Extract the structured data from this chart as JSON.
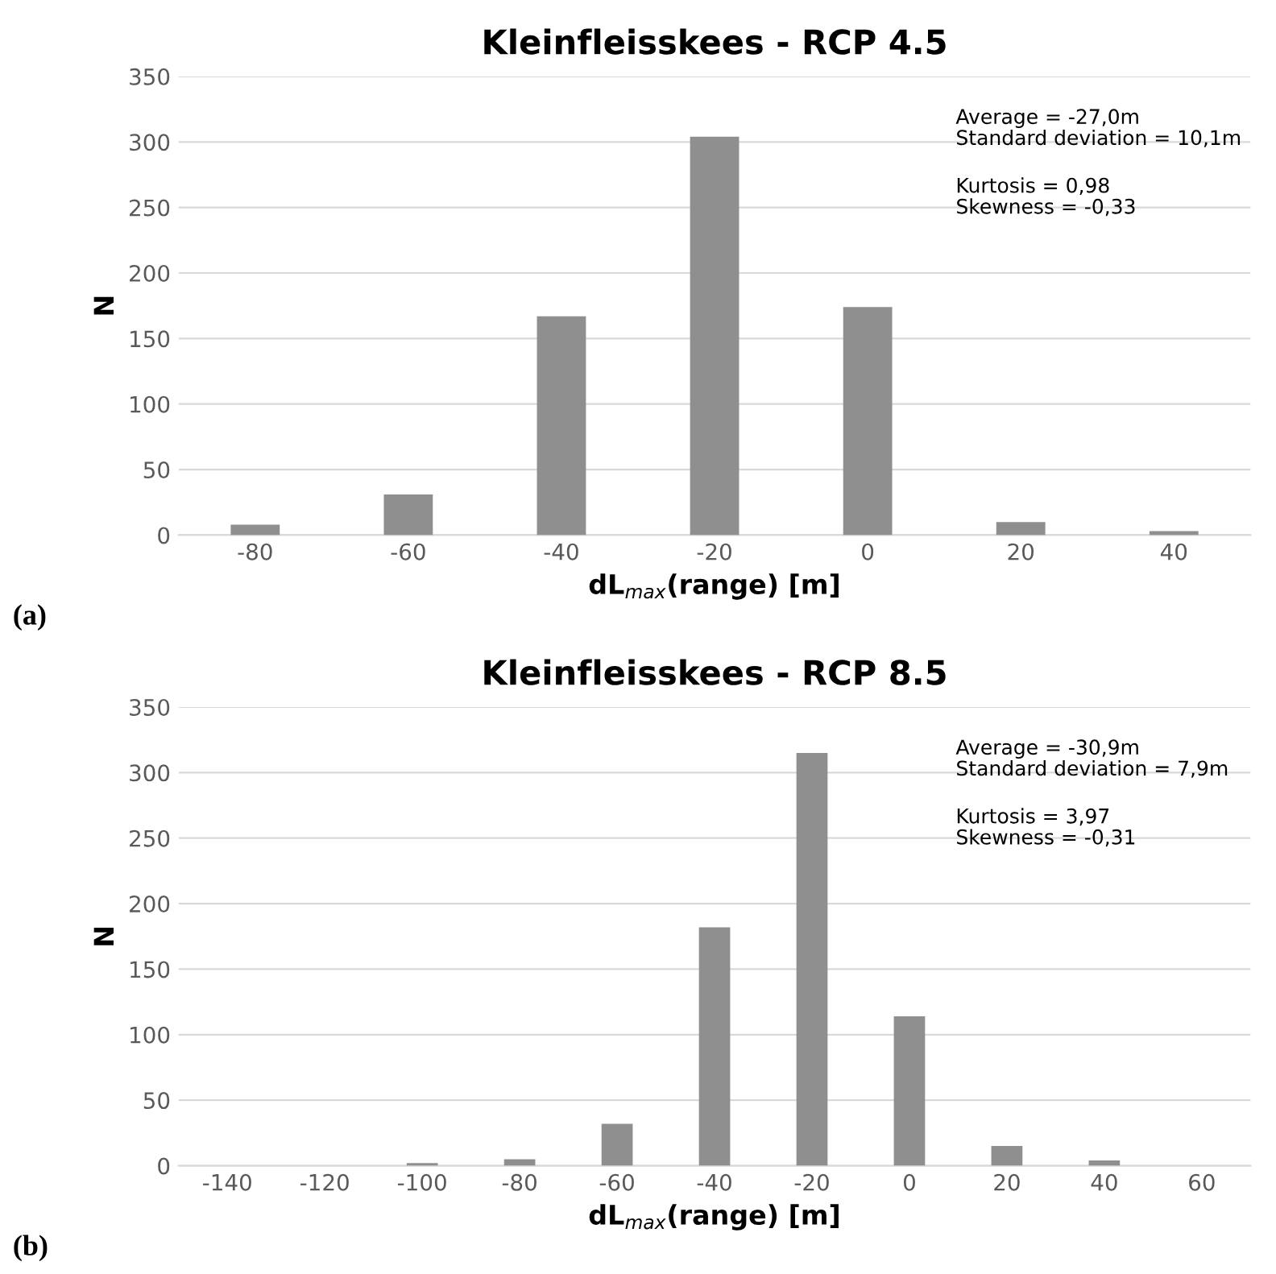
{
  "chart_data": [
    {
      "type": "bar",
      "title": "Kleinfleisskees - RCP 4.5",
      "xlabel": "dL$_{max}$(range) [m]",
      "ylabel": "N",
      "categories": [
        "-80",
        "-60",
        "-40",
        "-20",
        "0",
        "20",
        "40"
      ],
      "values": [
        8,
        31,
        167,
        304,
        174,
        10,
        3
      ],
      "color": "#8f8f8f",
      "ylim": [
        0,
        350
      ],
      "yticks": [
        0,
        50,
        100,
        150,
        200,
        250,
        300,
        350
      ],
      "grid": "y",
      "annotations": [
        "Average = -27,0m\nStandard deviation = 10,1m",
        "Kurtosis = 0,98\nSkewness = -0,33",
        "(a)"
      ]
    },
    {
      "type": "bar",
      "title": "Kleinfleisskees - RCP 8.5",
      "xlabel": "dL$_{max}$(range) [m]",
      "ylabel": "N",
      "categories": [
        "-140",
        "-120",
        "-100",
        "-80",
        "-60",
        "-40",
        "-20",
        "0",
        "20",
        "40",
        "60"
      ],
      "values": [
        0,
        0,
        2,
        5,
        32,
        182,
        315,
        114,
        15,
        4,
        0
      ],
      "color": "#8f8f8f",
      "ylim": [
        0,
        350
      ],
      "yticks": [
        0,
        50,
        100,
        150,
        200,
        250,
        300,
        350
      ],
      "grid": "y",
      "annotations": [
        "Average = -30,9m\nStandard deviation = 7,9m",
        "Kurtosis = 3,97\nSkewness = -0,31",
        "(b)"
      ]
    }
  ]
}
